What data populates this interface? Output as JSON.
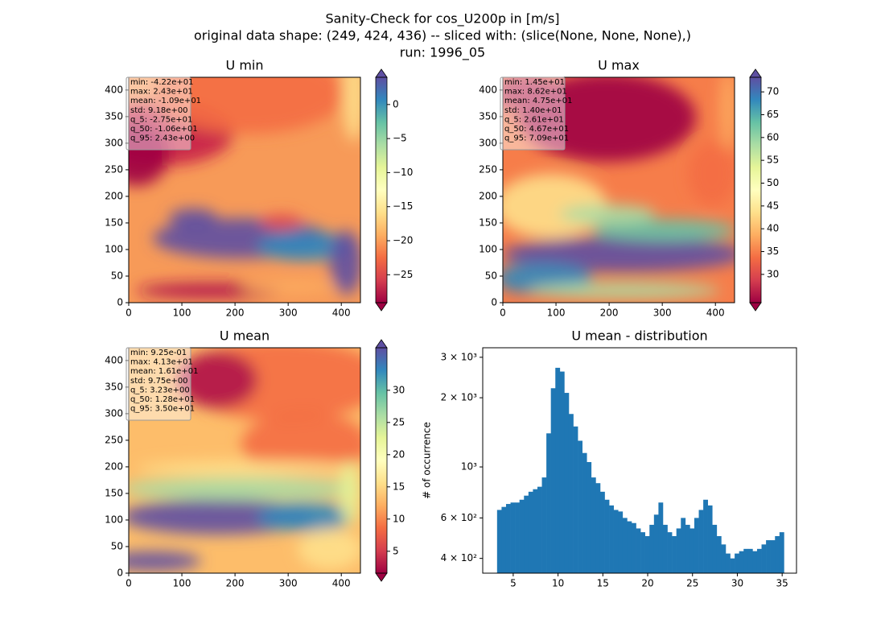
{
  "title_lines": [
    "Sanity-Check for cos_U200p in [m/s]",
    "original data shape: (249, 424, 436) -- sliced with: (slice(None, None, None),)",
    "run: 1996_05"
  ],
  "chart_data": [
    {
      "type": "heatmap",
      "title": "U min",
      "colormap": "Spectral",
      "xlim": [
        0,
        436
      ],
      "ylim": [
        0,
        424
      ],
      "xticks": [
        0,
        100,
        200,
        300,
        400
      ],
      "yticks": [
        0,
        50,
        100,
        150,
        200,
        250,
        300,
        350,
        400
      ],
      "colorbar": {
        "lim": [
          -29.1,
          4.0
        ],
        "ticks": [
          {
            "value": -25,
            "label": "−25"
          },
          {
            "value": -20,
            "label": "−20"
          },
          {
            "value": -15,
            "label": "−15"
          },
          {
            "value": -10,
            "label": "−10"
          },
          {
            "value": -5,
            "label": "−5"
          },
          0
        ]
      },
      "stats": [
        "min: -4.22e+01",
        "max: 2.43e+01",
        "mean: -1.09e+01",
        "std: 9.18e+00",
        "q_5: -2.75e+01",
        "q_50: -1.06e+01",
        "q_95: 2.43e+00"
      ]
    },
    {
      "type": "heatmap",
      "title": "U max",
      "colormap": "Spectral",
      "xlim": [
        0,
        436
      ],
      "ylim": [
        0,
        424
      ],
      "xticks": [
        0,
        100,
        200,
        300,
        400
      ],
      "yticks": [
        0,
        50,
        100,
        150,
        200,
        250,
        300,
        350,
        400
      ],
      "colorbar": {
        "lim": [
          23.8,
          73.2
        ],
        "ticks": [
          30,
          35,
          40,
          45,
          50,
          55,
          60,
          65,
          70
        ]
      },
      "stats": [
        "min: 1.45e+01",
        "max: 8.62e+01",
        "mean: 4.75e+01",
        "std: 1.40e+01",
        "q_5: 2.61e+01",
        "q_50: 4.67e+01",
        "q_95: 7.09e+01"
      ]
    },
    {
      "type": "heatmap",
      "title": "U mean",
      "colormap": "Spectral",
      "xlim": [
        0,
        436
      ],
      "ylim": [
        0,
        424
      ],
      "xticks": [
        0,
        100,
        200,
        300,
        400
      ],
      "yticks": [
        0,
        50,
        100,
        150,
        200,
        250,
        300,
        350,
        400
      ],
      "colorbar": {
        "lim": [
          1.6,
          36.6
        ],
        "ticks": [
          5,
          10,
          15,
          20,
          25,
          30
        ]
      },
      "stats": [
        "min: 9.25e-01",
        "max: 4.13e+01",
        "mean: 1.61e+01",
        "std: 9.75e+00",
        "q_5: 3.23e+00",
        "q_50: 1.28e+01",
        "q_95: 3.50e+01"
      ]
    },
    {
      "type": "histogram",
      "title": "U mean - distribution",
      "y_label": "# of occurrence",
      "color": "#1f77b4",
      "log_y": true,
      "xlim": [
        1.6,
        36.6
      ],
      "ylim": [
        345,
        3300
      ],
      "xticks": [
        5,
        10,
        15,
        20,
        25,
        30,
        35
      ],
      "yticks": [
        {
          "value": 400,
          "label": "4 × 10²"
        },
        {
          "value": 600,
          "label": "6 × 10²"
        },
        {
          "value": 1000,
          "label": "10³"
        },
        {
          "value": 2000,
          "label": "2 × 10³"
        },
        {
          "value": 3000,
          "label": "3 × 10³"
        }
      ],
      "bins": [
        3.2,
        3.7,
        4.2,
        4.7,
        5.2,
        5.7,
        6.2,
        6.7,
        7.2,
        7.7,
        8.2,
        8.7,
        9.2,
        9.7,
        10.2,
        10.7,
        11.2,
        11.7,
        12.2,
        12.7,
        13.2,
        13.7,
        14.2,
        14.7,
        15.2,
        15.7,
        16.2,
        16.7,
        17.2,
        17.7,
        18.2,
        18.7,
        19.2,
        19.7,
        20.2,
        20.7,
        21.2,
        21.7,
        22.2,
        22.7,
        23.2,
        23.7,
        24.2,
        24.7,
        25.2,
        25.7,
        26.2,
        26.7,
        27.2,
        27.7,
        28.2,
        28.7,
        29.2,
        29.7,
        30.2,
        30.7,
        31.2,
        31.7,
        32.2,
        32.7,
        33.2,
        33.7,
        34.2,
        34.7,
        35.2
      ],
      "values": [
        650,
        670,
        690,
        700,
        700,
        720,
        750,
        780,
        800,
        820,
        900,
        1400,
        2200,
        2700,
        2600,
        2100,
        1700,
        1500,
        1300,
        1150,
        1050,
        900,
        850,
        780,
        720,
        680,
        650,
        640,
        600,
        580,
        570,
        540,
        520,
        500,
        560,
        620,
        700,
        560,
        520,
        500,
        540,
        600,
        560,
        540,
        600,
        650,
        720,
        680,
        560,
        500,
        460,
        420,
        400,
        420,
        430,
        440,
        440,
        430,
        440,
        460,
        480,
        480,
        500,
        520
      ]
    }
  ]
}
